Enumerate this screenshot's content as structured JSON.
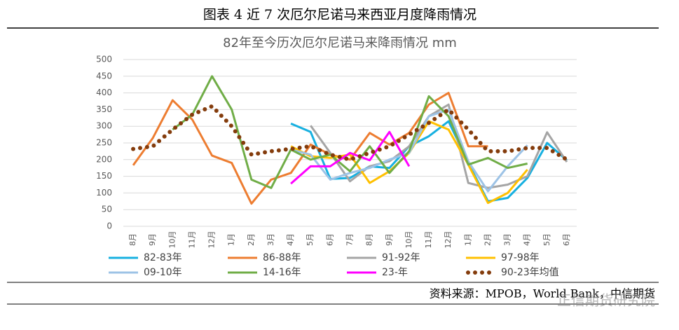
{
  "header": {
    "caption": "图表 4 近 7 次厄尔尼诺马来西亚月度降雨情况"
  },
  "chart_data": {
    "type": "line",
    "title": "82年至今历次厄尔尼诺马来降雨情况    mm",
    "categories": [
      "8月",
      "9月",
      "10月",
      "11月",
      "12月",
      "1月",
      "2月",
      "3月",
      "4月",
      "5月",
      "6月",
      "7月",
      "8月",
      "9月",
      "10月",
      "11月",
      "12月",
      "1月",
      "2月",
      "3月",
      "4月",
      "5月",
      "6月"
    ],
    "ylim": [
      0,
      500
    ],
    "yticks": [
      0,
      50,
      100,
      150,
      200,
      250,
      300,
      350,
      400,
      450,
      500
    ],
    "grid": true,
    "series": [
      {
        "name": "82-83年",
        "color": "#17b0e0",
        "values": [
          null,
          null,
          null,
          null,
          null,
          null,
          null,
          null,
          308,
          283,
          142,
          145,
          180,
          175,
          240,
          270,
          315,
          190,
          75,
          85,
          145,
          250,
          198
        ]
      },
      {
        "name": "86-88年",
        "color": "#ed7d31",
        "values": [
          183,
          265,
          378,
          320,
          212,
          190,
          68,
          140,
          160,
          245,
          215,
          200,
          280,
          245,
          280,
          365,
          400,
          240,
          240,
          null,
          null,
          null,
          null
        ]
      },
      {
        "name": "91-92年",
        "color": "#a5a5a5",
        "values": [
          null,
          null,
          null,
          null,
          null,
          null,
          null,
          null,
          null,
          302,
          220,
          135,
          180,
          195,
          240,
          330,
          365,
          130,
          115,
          125,
          150,
          282,
          193
        ]
      },
      {
        "name": "97-98年",
        "color": "#ffc000",
        "values": [
          null,
          null,
          null,
          null,
          null,
          null,
          null,
          null,
          240,
          210,
          205,
          215,
          130,
          165,
          220,
          315,
          290,
          185,
          70,
          100,
          170,
          null,
          null
        ]
      },
      {
        "name": "09-10年",
        "color": "#9dc3e6",
        "values": [
          null,
          null,
          null,
          null,
          null,
          null,
          null,
          null,
          230,
          215,
          140,
          160,
          175,
          200,
          220,
          330,
          350,
          195,
          105,
          180,
          243,
          null,
          null
        ]
      },
      {
        "name": "14-16年",
        "color": "#70ad47",
        "values": [
          null,
          null,
          290,
          335,
          450,
          350,
          140,
          115,
          230,
          200,
          215,
          165,
          240,
          160,
          225,
          390,
          330,
          185,
          205,
          175,
          188,
          null,
          null
        ]
      },
      {
        "name": "23-年",
        "color": "#ff00ff",
        "values": [
          null,
          null,
          null,
          null,
          null,
          null,
          null,
          null,
          128,
          180,
          180,
          220,
          198,
          283,
          180,
          null,
          null,
          null,
          null,
          null,
          null,
          null,
          null
        ]
      },
      {
        "name": "90-23年均值",
        "color": "#843c0c",
        "style": "dotted",
        "values": [
          232,
          240,
          290,
          335,
          360,
          300,
          215,
          225,
          232,
          240,
          215,
          200,
          220,
          240,
          275,
          310,
          350,
          290,
          225,
          225,
          235,
          235,
          200
        ]
      }
    ]
  },
  "footer": {
    "source": "资料来源：MPOB，World Bank，中信期货",
    "watermark": "正信期货研究院"
  }
}
